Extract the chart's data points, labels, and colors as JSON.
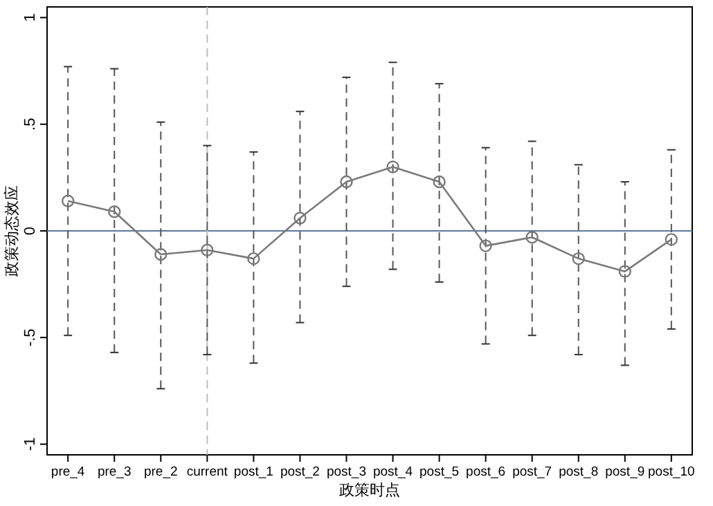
{
  "chart_data": {
    "type": "line",
    "xlabel": "政策时点",
    "ylabel": "政策动态效应",
    "categories": [
      "pre_4",
      "pre_3",
      "pre_2",
      "current",
      "post_1",
      "post_2",
      "post_3",
      "post_4",
      "post_5",
      "post_6",
      "post_7",
      "post_8",
      "post_9",
      "post_10"
    ],
    "series": [
      {
        "color": "#7a7a7a",
        "values": [
          0.14,
          0.09,
          -0.11,
          -0.09,
          -0.13,
          0.06,
          0.23,
          0.3,
          0.23,
          -0.07,
          -0.03,
          -0.13,
          -0.19,
          -0.04
        ],
        "errors": [
          [
            -0.49,
            0.77
          ],
          [
            -0.57,
            0.76
          ],
          [
            -0.74,
            0.51
          ],
          [
            -0.58,
            0.4
          ],
          [
            -0.62,
            0.37
          ],
          [
            -0.43,
            0.56
          ],
          [
            -0.26,
            0.72
          ],
          [
            -0.18,
            0.79
          ],
          [
            -0.24,
            0.69
          ],
          [
            -0.53,
            0.39
          ],
          [
            -0.49,
            0.42
          ],
          [
            -0.58,
            0.31
          ],
          [
            -0.63,
            0.23
          ],
          [
            -0.46,
            0.38
          ]
        ]
      }
    ],
    "ylim": [
      -1.05,
      1.05
    ],
    "yticks": [
      {
        "value": -1,
        "label": "-1"
      },
      {
        "value": -0.5,
        "label": "-.5"
      },
      0,
      {
        "value": 0.5,
        "label": ".5"
      },
      1
    ],
    "ref_lines": [
      {
        "axis": "y",
        "value": 0,
        "color": "#5b7a9a",
        "line_style": "solid"
      },
      {
        "axis": "x",
        "value": "current",
        "color": "#bdbdbd",
        "line_style": "dashed"
      }
    ],
    "marker": "circle",
    "line_style": "solid",
    "grid": false
  }
}
